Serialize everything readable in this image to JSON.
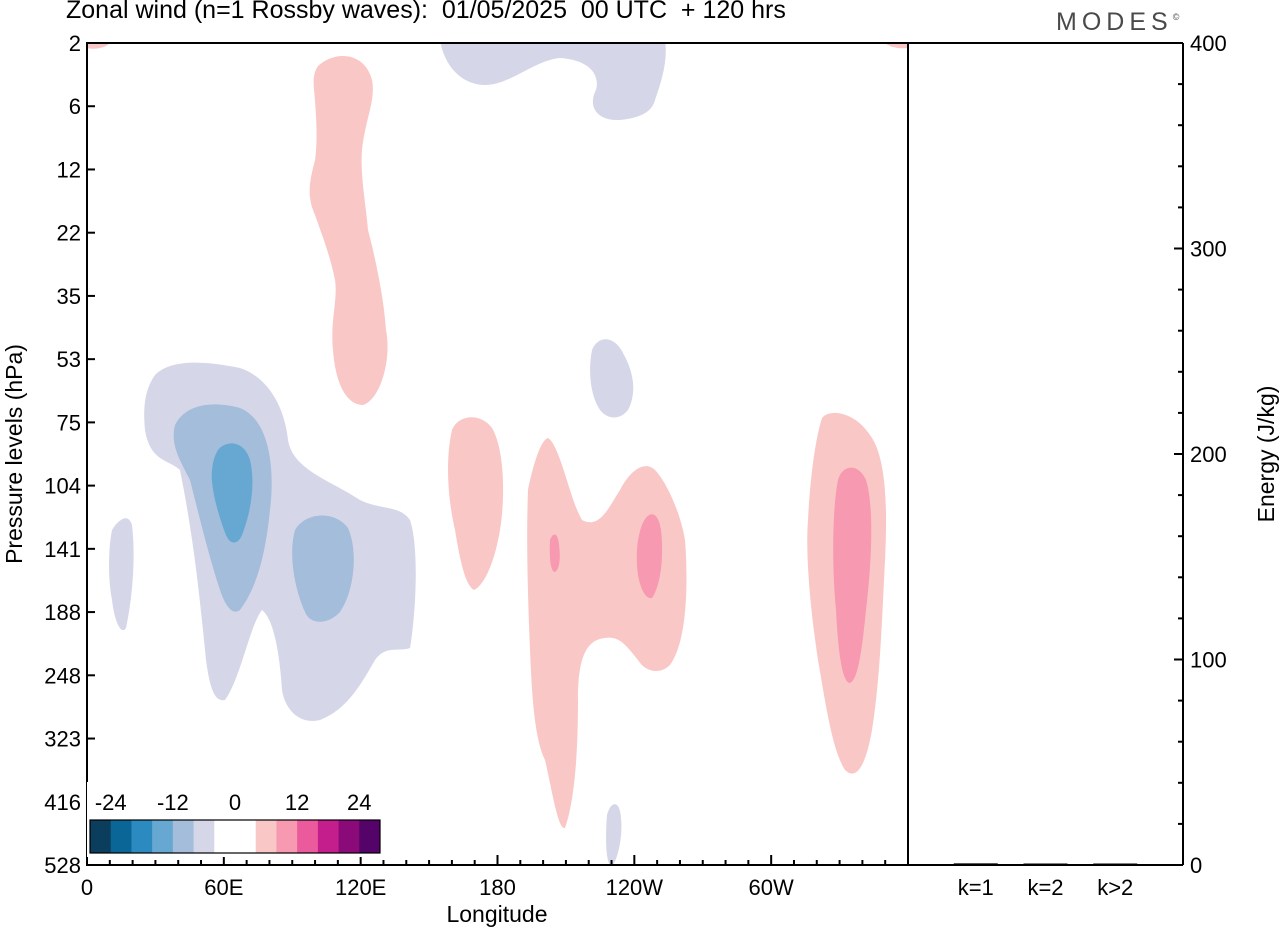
{
  "header": {
    "title": "Zonal wind (n=1 Rossby waves):  01/05/2025  00 UTC  + 120 hrs",
    "brand": "MODES",
    "brand_mark": "©"
  },
  "chart_data": [
    {
      "type": "heatmap",
      "xlabel": "Longitude",
      "ylabel": "Pressure levels (hPa)",
      "x_ticks": [
        "0",
        "60E",
        "120E",
        "180",
        "120W",
        "60W"
      ],
      "x_tick_degrees": [
        0,
        60,
        120,
        180,
        240,
        300
      ],
      "xlim": [
        0,
        360
      ],
      "y_ticks": [
        "2",
        "6",
        "12",
        "22",
        "35",
        "53",
        "75",
        "104",
        "141",
        "188",
        "248",
        "323",
        "416",
        "528"
      ],
      "y_scale": "pressure levels (top to bottom, 2 to 528 hPa)",
      "colorbar": {
        "labels": [
          "-24",
          "-12",
          "0",
          "12",
          "24"
        ],
        "colors": [
          "#0b3d5c",
          "#0a6696",
          "#2b8ac0",
          "#67a8d2",
          "#a3bddb",
          "#d5d7e9",
          "#ffffff",
          "#ffffff",
          "#f9c8c6",
          "#f799b1",
          "#ec5a9e",
          "#c41d8c",
          "#8b0a79",
          "#540368"
        ]
      },
      "features": [
        {
          "sign": "positive",
          "level": 1,
          "lon": [
            77,
            90
          ],
          "p": [
            2,
            53
          ]
        },
        {
          "sign": "negative",
          "level": 1,
          "lon": [
            155,
            251
          ],
          "p": [
            2,
            6
          ]
        },
        {
          "sign": "negative",
          "level": 1,
          "lon": [
            10,
            145
          ],
          "p": [
            53,
            248
          ]
        },
        {
          "sign": "negative",
          "level": 2,
          "lon": [
            32,
            112
          ],
          "p": [
            75,
            188
          ]
        },
        {
          "sign": "negative",
          "level": 3,
          "lon": [
            54,
            65
          ],
          "p": [
            85,
            141
          ]
        },
        {
          "sign": "negative",
          "level": 1,
          "lon": [
            208,
            214
          ],
          "p": [
            53,
            75
          ]
        },
        {
          "sign": "negative",
          "level": 1,
          "lon": [
            209,
            214
          ],
          "p": [
            416,
            528
          ]
        },
        {
          "sign": "positive",
          "level": 1,
          "lon": [
            157,
            210
          ],
          "p": [
            75,
            416
          ]
        },
        {
          "sign": "positive",
          "level": 2,
          "lon": [
            193,
            198
          ],
          "p": [
            141,
            141
          ]
        },
        {
          "sign": "positive",
          "level": 2,
          "lon": [
            221,
            233
          ],
          "p": [
            120,
            188
          ]
        },
        {
          "sign": "positive",
          "level": 1,
          "lon": [
            216,
            251
          ],
          "p": [
            104,
            248
          ]
        },
        {
          "sign": "positive",
          "level": 1,
          "lon": [
            321,
            353
          ],
          "p": [
            75,
            323
          ]
        },
        {
          "sign": "positive",
          "level": 2,
          "lon": [
            331,
            346
          ],
          "p": [
            104,
            248
          ]
        }
      ]
    },
    {
      "type": "bar",
      "categories": [
        "k=1",
        "k=2",
        "k>2"
      ],
      "values": [
        0.8,
        0.3,
        0.2
      ],
      "ylabel": "Energy (J/kg)",
      "ylim": [
        0,
        400
      ],
      "y_ticks": [
        "0",
        "100",
        "200",
        "300",
        "400"
      ]
    }
  ]
}
